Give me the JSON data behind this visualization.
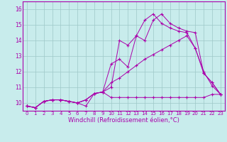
{
  "title": "",
  "xlabel": "Windchill (Refroidissement éolien,°C)",
  "ylabel": "",
  "background_color": "#c8ecec",
  "line_color": "#aa00aa",
  "xlim": [
    -0.5,
    23.5
  ],
  "ylim": [
    9.5,
    16.5
  ],
  "xticks": [
    0,
    1,
    2,
    3,
    4,
    5,
    6,
    7,
    8,
    9,
    10,
    11,
    12,
    13,
    14,
    15,
    16,
    17,
    18,
    19,
    20,
    21,
    22,
    23
  ],
  "yticks": [
    10,
    11,
    12,
    13,
    14,
    15,
    16
  ],
  "series1_y": [
    9.8,
    9.7,
    10.1,
    10.2,
    10.2,
    10.1,
    10.0,
    9.8,
    10.6,
    10.7,
    10.35,
    10.35,
    10.35,
    10.35,
    10.35,
    10.35,
    10.35,
    10.35,
    10.35,
    10.35,
    10.35,
    10.35,
    10.55,
    10.55
  ],
  "series2_y": [
    9.8,
    9.7,
    10.1,
    10.2,
    10.2,
    10.1,
    10.0,
    10.2,
    10.6,
    10.7,
    11.3,
    11.6,
    12.0,
    12.4,
    12.8,
    13.1,
    13.4,
    13.7,
    14.0,
    14.3,
    13.5,
    12.0,
    11.1,
    10.55
  ],
  "series3_y": [
    9.8,
    9.7,
    10.1,
    10.2,
    10.2,
    10.1,
    10.0,
    10.2,
    10.6,
    10.7,
    12.5,
    12.8,
    12.3,
    14.3,
    14.0,
    15.3,
    15.7,
    15.1,
    14.8,
    14.6,
    14.5,
    11.9,
    11.3,
    10.55
  ],
  "series4_y": [
    9.8,
    9.7,
    10.1,
    10.2,
    10.2,
    10.1,
    10.0,
    10.2,
    10.6,
    10.7,
    11.0,
    14.0,
    13.7,
    14.3,
    15.3,
    15.7,
    15.1,
    14.8,
    14.6,
    14.5,
    13.5,
    11.9,
    11.3,
    10.55
  ],
  "xlabel_fontsize": 6,
  "tick_fontsize": 5,
  "grid_color": "#9ec8c8",
  "spine_color": "#aa00aa"
}
